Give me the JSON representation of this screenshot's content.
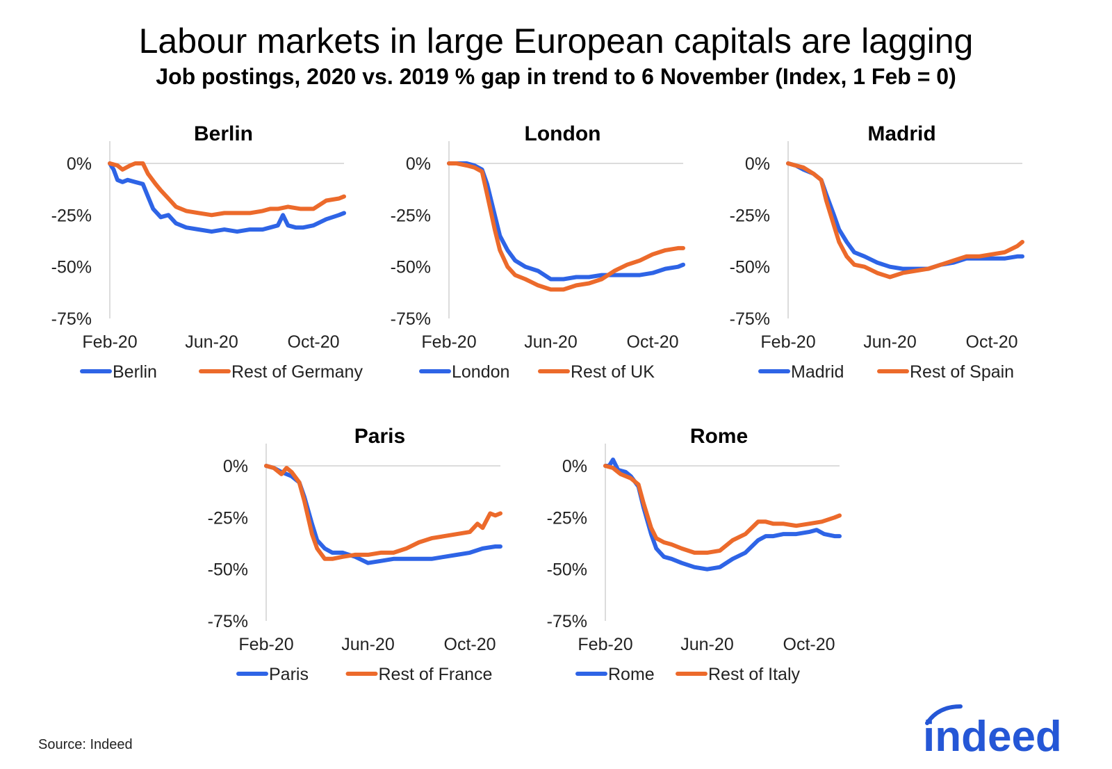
{
  "title": "Labour markets in large European capitals are lagging",
  "subtitle": "Job postings, 2020 vs. 2019 % gap in trend to 6 November (Index, 1 Feb = 0)",
  "source": "Source: Indeed",
  "logo_text": "indeed",
  "colors": {
    "capital": "#2E64E6",
    "rest": "#EC6A2B",
    "axis": "#d0d0d0",
    "logo": "#2557D6"
  },
  "chart_data": [
    {
      "type": "line",
      "title": "Berlin",
      "y_ticks": [
        "0%",
        "-25%",
        "-50%",
        "-75%"
      ],
      "ylim": [
        -75,
        0
      ],
      "x_ticks": [
        "Feb-20",
        "Jun-20",
        "Oct-20"
      ],
      "x_tick_positions": [
        0,
        4,
        8
      ],
      "xlim": [
        0,
        9.2
      ],
      "series": [
        {
          "name": "Berlin",
          "x": [
            0,
            0.15,
            0.3,
            0.5,
            0.7,
            1.0,
            1.3,
            1.5,
            1.7,
            2.0,
            2.3,
            2.6,
            3.0,
            3.5,
            4.0,
            4.5,
            5.0,
            5.5,
            6.0,
            6.3,
            6.6,
            6.8,
            7.0,
            7.3,
            7.6,
            8.0,
            8.5,
            9.0,
            9.2
          ],
          "values": [
            0,
            -3,
            -8,
            -9,
            -8,
            -9,
            -10,
            -16,
            -22,
            -26,
            -25,
            -29,
            -31,
            -32,
            -33,
            -32,
            -33,
            -32,
            -32,
            -31,
            -30,
            -25,
            -30,
            -31,
            -31,
            -30,
            -27,
            -25,
            -24
          ]
        },
        {
          "name": "Rest of Germany",
          "x": [
            0,
            0.3,
            0.5,
            0.8,
            1.0,
            1.3,
            1.5,
            1.8,
            2.0,
            2.3,
            2.6,
            3.0,
            3.5,
            4.0,
            4.5,
            5.0,
            5.5,
            6.0,
            6.3,
            6.6,
            7.0,
            7.5,
            8.0,
            8.5,
            9.0,
            9.2
          ],
          "values": [
            0,
            -1,
            -3,
            -1,
            0,
            0,
            -5,
            -10,
            -13,
            -17,
            -21,
            -23,
            -24,
            -25,
            -24,
            -24,
            -24,
            -23,
            -22,
            -22,
            -21,
            -22,
            -22,
            -18,
            -17,
            -16
          ]
        }
      ]
    },
    {
      "type": "line",
      "title": "London",
      "y_ticks": [
        "0%",
        "-25%",
        "-50%",
        "-75%"
      ],
      "ylim": [
        -75,
        0
      ],
      "x_ticks": [
        "Feb-20",
        "Jun-20",
        "Oct-20"
      ],
      "x_tick_positions": [
        0,
        4,
        8
      ],
      "xlim": [
        0,
        9.2
      ],
      "series": [
        {
          "name": "London",
          "x": [
            0,
            0.3,
            0.7,
            1.0,
            1.3,
            1.5,
            1.8,
            2.0,
            2.3,
            2.6,
            3.0,
            3.5,
            4.0,
            4.5,
            5.0,
            5.5,
            6.0,
            6.5,
            7.0,
            7.5,
            8.0,
            8.5,
            9.0,
            9.2
          ],
          "values": [
            0,
            0,
            0,
            -1,
            -3,
            -10,
            -25,
            -35,
            -42,
            -47,
            -50,
            -52,
            -56,
            -56,
            -55,
            -55,
            -54,
            -54,
            -54,
            -54,
            -53,
            -51,
            -50,
            -49
          ]
        },
        {
          "name": "Rest of UK",
          "x": [
            0,
            0.3,
            0.7,
            1.0,
            1.3,
            1.5,
            1.8,
            2.0,
            2.3,
            2.6,
            3.0,
            3.5,
            4.0,
            4.5,
            5.0,
            5.5,
            6.0,
            6.5,
            7.0,
            7.5,
            8.0,
            8.5,
            9.0,
            9.2
          ],
          "values": [
            0,
            0,
            -1,
            -2,
            -4,
            -15,
            -32,
            -42,
            -50,
            -54,
            -56,
            -59,
            -61,
            -61,
            -59,
            -58,
            -56,
            -52,
            -49,
            -47,
            -44,
            -42,
            -41,
            -41
          ]
        }
      ]
    },
    {
      "type": "line",
      "title": "Madrid",
      "y_ticks": [
        "0%",
        "-25%",
        "-50%",
        "-75%"
      ],
      "ylim": [
        -75,
        0
      ],
      "x_ticks": [
        "Feb-20",
        "Jun-20",
        "Oct-20"
      ],
      "x_tick_positions": [
        0,
        4,
        8
      ],
      "xlim": [
        0,
        9.2
      ],
      "series": [
        {
          "name": "Madrid",
          "x": [
            0,
            0.3,
            0.6,
            1.0,
            1.3,
            1.5,
            1.8,
            2.0,
            2.3,
            2.6,
            3.0,
            3.5,
            4.0,
            4.5,
            5.0,
            5.5,
            6.0,
            6.5,
            7.0,
            7.5,
            8.0,
            8.5,
            9.0,
            9.2
          ],
          "values": [
            0,
            -1,
            -3,
            -5,
            -8,
            -15,
            -25,
            -32,
            -38,
            -43,
            -45,
            -48,
            -50,
            -51,
            -51,
            -51,
            -49,
            -48,
            -46,
            -46,
            -46,
            -46,
            -45,
            -45
          ]
        },
        {
          "name": "Rest of Spain",
          "x": [
            0,
            0.3,
            0.6,
            1.0,
            1.3,
            1.5,
            1.8,
            2.0,
            2.3,
            2.6,
            3.0,
            3.5,
            4.0,
            4.5,
            5.0,
            5.5,
            6.0,
            6.5,
            7.0,
            7.5,
            8.0,
            8.5,
            9.0,
            9.2
          ],
          "values": [
            0,
            -1,
            -2,
            -5,
            -8,
            -18,
            -30,
            -38,
            -45,
            -49,
            -50,
            -53,
            -55,
            -53,
            -52,
            -51,
            -49,
            -47,
            -45,
            -45,
            -44,
            -43,
            -40,
            -38
          ]
        }
      ]
    },
    {
      "type": "line",
      "title": "Paris",
      "y_ticks": [
        "0%",
        "-25%",
        "-50%",
        "-75%"
      ],
      "ylim": [
        -75,
        0
      ],
      "x_ticks": [
        "Feb-20",
        "Jun-20",
        "Oct-20"
      ],
      "x_tick_positions": [
        0,
        4,
        8
      ],
      "xlim": [
        0,
        9.2
      ],
      "series": [
        {
          "name": "Paris",
          "x": [
            0,
            0.3,
            0.6,
            1.0,
            1.3,
            1.5,
            1.8,
            2.0,
            2.3,
            2.6,
            3.0,
            3.5,
            4.0,
            4.5,
            5.0,
            5.5,
            6.0,
            6.5,
            7.0,
            7.5,
            8.0,
            8.5,
            9.0,
            9.2
          ],
          "values": [
            0,
            -1,
            -3,
            -5,
            -8,
            -15,
            -28,
            -36,
            -40,
            -42,
            -42,
            -44,
            -47,
            -46,
            -45,
            -45,
            -45,
            -45,
            -44,
            -43,
            -42,
            -40,
            -39,
            -39
          ]
        },
        {
          "name": "Rest of France",
          "x": [
            0,
            0.3,
            0.6,
            0.8,
            1.0,
            1.3,
            1.5,
            1.8,
            2.0,
            2.3,
            2.6,
            3.0,
            3.5,
            4.0,
            4.5,
            5.0,
            5.5,
            6.0,
            6.5,
            7.0,
            7.5,
            8.0,
            8.3,
            8.5,
            8.8,
            9.0,
            9.2
          ],
          "values": [
            0,
            -1,
            -4,
            -1,
            -3,
            -8,
            -17,
            -33,
            -40,
            -45,
            -45,
            -44,
            -43,
            -43,
            -42,
            -42,
            -40,
            -37,
            -35,
            -34,
            -33,
            -32,
            -28,
            -30,
            -23,
            -24,
            -23
          ]
        }
      ]
    },
    {
      "type": "line",
      "title": "Rome",
      "y_ticks": [
        "0%",
        "-25%",
        "-50%",
        "-75%"
      ],
      "ylim": [
        -75,
        0
      ],
      "x_ticks": [
        "Feb-20",
        "Jun-20",
        "Oct-20"
      ],
      "x_tick_positions": [
        0,
        4,
        8
      ],
      "xlim": [
        0,
        9.2
      ],
      "series": [
        {
          "name": "Rome",
          "x": [
            0,
            0.15,
            0.3,
            0.5,
            0.8,
            1.0,
            1.3,
            1.5,
            1.8,
            2.0,
            2.3,
            2.6,
            3.0,
            3.5,
            4.0,
            4.5,
            5.0,
            5.5,
            6.0,
            6.3,
            6.6,
            7.0,
            7.5,
            8.0,
            8.3,
            8.6,
            9.0,
            9.2
          ],
          "values": [
            0,
            0,
            3,
            -2,
            -3,
            -5,
            -10,
            -20,
            -33,
            -40,
            -44,
            -45,
            -47,
            -49,
            -50,
            -49,
            -45,
            -42,
            -36,
            -34,
            -34,
            -33,
            -33,
            -32,
            -31,
            -33,
            -34,
            -34
          ]
        },
        {
          "name": "Rest of Italy",
          "x": [
            0,
            0.3,
            0.6,
            1.0,
            1.3,
            1.5,
            1.8,
            2.0,
            2.3,
            2.6,
            3.0,
            3.5,
            4.0,
            4.5,
            5.0,
            5.5,
            6.0,
            6.3,
            6.6,
            7.0,
            7.5,
            8.0,
            8.5,
            9.0,
            9.2
          ],
          "values": [
            0,
            -1,
            -4,
            -6,
            -9,
            -18,
            -30,
            -35,
            -37,
            -38,
            -40,
            -42,
            -42,
            -41,
            -36,
            -33,
            -27,
            -27,
            -28,
            -28,
            -29,
            -28,
            -27,
            -25,
            -24
          ]
        }
      ]
    }
  ]
}
